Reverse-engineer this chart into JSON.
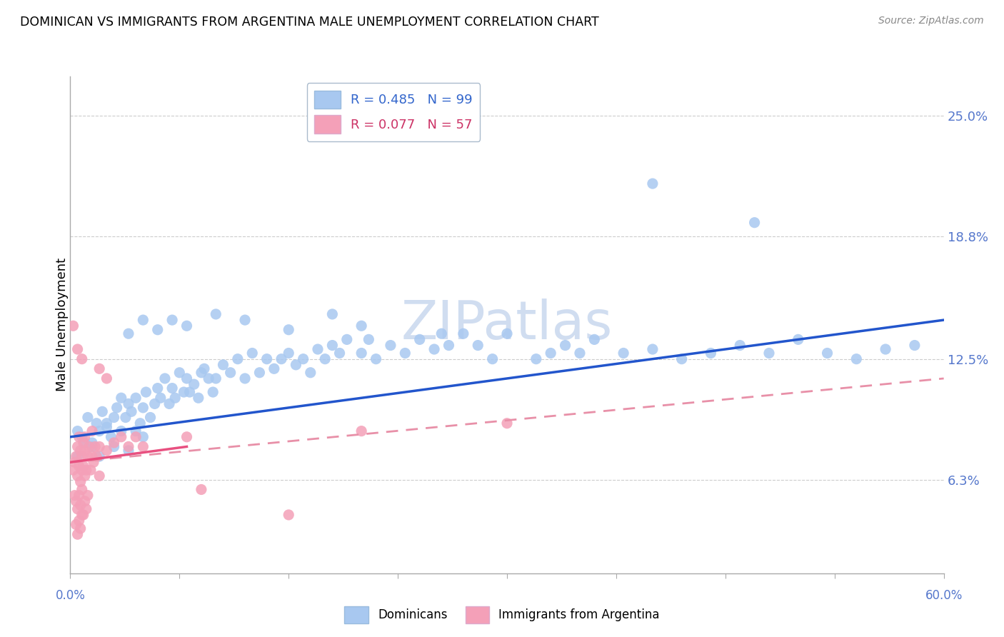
{
  "title": "DOMINICAN VS IMMIGRANTS FROM ARGENTINA MALE UNEMPLOYMENT CORRELATION CHART",
  "source": "Source: ZipAtlas.com",
  "ylabel": "Male Unemployment",
  "ytick_values": [
    6.3,
    12.5,
    18.8,
    25.0
  ],
  "xmin": 0.0,
  "xmax": 60.0,
  "ymin": 1.5,
  "ymax": 27.0,
  "dominican_color": "#a8c8f0",
  "argentina_color": "#f4a0b8",
  "dominican_line_color": "#2255cc",
  "argentina_line_color": "#e85080",
  "argentina_line_dashed_color": "#e890a8",
  "background_color": "#ffffff",
  "grid_color": "#cccccc",
  "watermark_color": "#d0ddf0",
  "dominican_points": [
    [
      0.5,
      8.8
    ],
    [
      0.8,
      8.5
    ],
    [
      1.0,
      8.2
    ],
    [
      1.2,
      9.5
    ],
    [
      1.5,
      8.0
    ],
    [
      1.8,
      9.2
    ],
    [
      2.0,
      8.8
    ],
    [
      2.2,
      9.8
    ],
    [
      2.5,
      9.0
    ],
    [
      2.8,
      8.5
    ],
    [
      3.0,
      9.5
    ],
    [
      3.2,
      10.0
    ],
    [
      3.5,
      8.8
    ],
    [
      3.8,
      9.5
    ],
    [
      4.0,
      10.2
    ],
    [
      4.2,
      9.8
    ],
    [
      4.5,
      10.5
    ],
    [
      4.8,
      9.2
    ],
    [
      5.0,
      10.0
    ],
    [
      5.2,
      10.8
    ],
    [
      5.5,
      9.5
    ],
    [
      5.8,
      10.2
    ],
    [
      6.0,
      11.0
    ],
    [
      6.2,
      10.5
    ],
    [
      6.5,
      11.5
    ],
    [
      6.8,
      10.2
    ],
    [
      7.0,
      11.0
    ],
    [
      7.2,
      10.5
    ],
    [
      7.5,
      11.8
    ],
    [
      7.8,
      10.8
    ],
    [
      8.0,
      11.5
    ],
    [
      8.2,
      10.8
    ],
    [
      8.5,
      11.2
    ],
    [
      8.8,
      10.5
    ],
    [
      9.0,
      11.8
    ],
    [
      9.2,
      12.0
    ],
    [
      9.5,
      11.5
    ],
    [
      9.8,
      10.8
    ],
    [
      10.0,
      11.5
    ],
    [
      10.5,
      12.2
    ],
    [
      11.0,
      11.8
    ],
    [
      11.5,
      12.5
    ],
    [
      12.0,
      11.5
    ],
    [
      12.5,
      12.8
    ],
    [
      13.0,
      11.8
    ],
    [
      13.5,
      12.5
    ],
    [
      14.0,
      12.0
    ],
    [
      14.5,
      12.5
    ],
    [
      15.0,
      12.8
    ],
    [
      15.5,
      12.2
    ],
    [
      16.0,
      12.5
    ],
    [
      16.5,
      11.8
    ],
    [
      17.0,
      13.0
    ],
    [
      17.5,
      12.5
    ],
    [
      18.0,
      13.2
    ],
    [
      18.5,
      12.8
    ],
    [
      19.0,
      13.5
    ],
    [
      20.0,
      12.8
    ],
    [
      20.5,
      13.5
    ],
    [
      21.0,
      12.5
    ],
    [
      22.0,
      13.2
    ],
    [
      23.0,
      12.8
    ],
    [
      24.0,
      13.5
    ],
    [
      25.0,
      13.0
    ],
    [
      25.5,
      13.8
    ],
    [
      26.0,
      13.2
    ],
    [
      27.0,
      13.8
    ],
    [
      28.0,
      13.2
    ],
    [
      29.0,
      12.5
    ],
    [
      30.0,
      13.8
    ],
    [
      32.0,
      12.5
    ],
    [
      33.0,
      12.8
    ],
    [
      34.0,
      13.2
    ],
    [
      35.0,
      12.8
    ],
    [
      36.0,
      13.5
    ],
    [
      38.0,
      12.8
    ],
    [
      40.0,
      13.0
    ],
    [
      42.0,
      12.5
    ],
    [
      44.0,
      12.8
    ],
    [
      46.0,
      13.2
    ],
    [
      48.0,
      12.8
    ],
    [
      50.0,
      13.5
    ],
    [
      52.0,
      12.8
    ],
    [
      54.0,
      12.5
    ],
    [
      56.0,
      13.0
    ],
    [
      58.0,
      13.2
    ],
    [
      4.0,
      13.8
    ],
    [
      5.0,
      14.5
    ],
    [
      6.0,
      14.0
    ],
    [
      7.0,
      14.5
    ],
    [
      8.0,
      14.2
    ],
    [
      10.0,
      14.8
    ],
    [
      12.0,
      14.5
    ],
    [
      15.0,
      14.0
    ],
    [
      18.0,
      14.8
    ],
    [
      20.0,
      14.2
    ],
    [
      2.0,
      7.5
    ],
    [
      3.0,
      8.0
    ],
    [
      4.0,
      7.8
    ],
    [
      5.0,
      8.5
    ],
    [
      40.0,
      21.5
    ],
    [
      47.0,
      19.5
    ],
    [
      0.5,
      7.5
    ],
    [
      1.5,
      8.2
    ],
    [
      2.5,
      9.2
    ],
    [
      3.5,
      10.5
    ],
    [
      4.5,
      8.8
    ]
  ],
  "argentina_points": [
    [
      0.2,
      6.8
    ],
    [
      0.3,
      7.2
    ],
    [
      0.4,
      7.5
    ],
    [
      0.5,
      6.5
    ],
    [
      0.5,
      8.0
    ],
    [
      0.6,
      7.0
    ],
    [
      0.6,
      8.5
    ],
    [
      0.7,
      6.2
    ],
    [
      0.7,
      7.8
    ],
    [
      0.8,
      6.8
    ],
    [
      0.8,
      7.5
    ],
    [
      0.9,
      7.0
    ],
    [
      0.9,
      8.2
    ],
    [
      1.0,
      6.5
    ],
    [
      1.0,
      7.8
    ],
    [
      1.0,
      8.5
    ],
    [
      1.1,
      6.8
    ],
    [
      1.2,
      7.5
    ],
    [
      1.3,
      8.0
    ],
    [
      1.4,
      6.8
    ],
    [
      1.5,
      7.5
    ],
    [
      1.5,
      8.8
    ],
    [
      1.6,
      7.2
    ],
    [
      1.7,
      8.0
    ],
    [
      1.8,
      7.5
    ],
    [
      2.0,
      8.0
    ],
    [
      2.0,
      6.5
    ],
    [
      2.5,
      7.8
    ],
    [
      3.0,
      8.2
    ],
    [
      3.5,
      8.5
    ],
    [
      4.0,
      8.0
    ],
    [
      4.5,
      8.5
    ],
    [
      5.0,
      8.0
    ],
    [
      0.3,
      5.5
    ],
    [
      0.4,
      5.2
    ],
    [
      0.5,
      4.8
    ],
    [
      0.6,
      5.5
    ],
    [
      0.7,
      5.0
    ],
    [
      0.8,
      5.8
    ],
    [
      0.9,
      4.5
    ],
    [
      1.0,
      5.2
    ],
    [
      1.1,
      4.8
    ],
    [
      1.2,
      5.5
    ],
    [
      0.4,
      4.0
    ],
    [
      0.5,
      3.5
    ],
    [
      0.6,
      4.2
    ],
    [
      0.7,
      3.8
    ],
    [
      0.8,
      4.5
    ],
    [
      0.2,
      14.2
    ],
    [
      0.5,
      13.0
    ],
    [
      0.8,
      12.5
    ],
    [
      8.0,
      8.5
    ],
    [
      20.0,
      8.8
    ],
    [
      30.0,
      9.2
    ],
    [
      9.0,
      5.8
    ],
    [
      15.0,
      4.5
    ],
    [
      2.0,
      12.0
    ],
    [
      2.5,
      11.5
    ]
  ]
}
